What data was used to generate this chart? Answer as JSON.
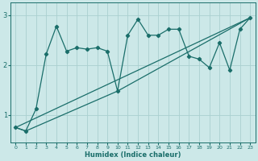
{
  "xlabel": "Humidex (Indice chaleur)",
  "background_color": "#cce8e8",
  "line_color": "#1a6e6a",
  "grid_color": "#aad0d0",
  "xlim": [
    -0.5,
    23.5
  ],
  "ylim": [
    0.45,
    3.25
  ],
  "yticks": [
    1,
    2,
    3
  ],
  "xticks": [
    0,
    1,
    2,
    3,
    4,
    5,
    6,
    7,
    8,
    9,
    10,
    11,
    12,
    13,
    14,
    15,
    16,
    17,
    18,
    19,
    20,
    21,
    22,
    23
  ],
  "series1_x": [
    0,
    1,
    2,
    3,
    4,
    5,
    6,
    7,
    8,
    9,
    10,
    11,
    12,
    13,
    14,
    15,
    16,
    17,
    18,
    19,
    20,
    21,
    22,
    23
  ],
  "series1_y": [
    0.75,
    0.68,
    1.12,
    2.22,
    2.78,
    2.28,
    2.35,
    2.32,
    2.35,
    2.28,
    1.48,
    2.6,
    2.92,
    2.6,
    2.6,
    2.72,
    2.72,
    2.18,
    2.12,
    1.95,
    2.45,
    1.9,
    2.72,
    2.95
  ],
  "series2_x": [
    0,
    23
  ],
  "series2_y": [
    0.75,
    2.95
  ],
  "series3_x": [
    0,
    1,
    10,
    23
  ],
  "series3_y": [
    0.75,
    0.68,
    1.48,
    2.95
  ],
  "marker": "D",
  "markersize": 2.2,
  "linewidth": 0.9
}
